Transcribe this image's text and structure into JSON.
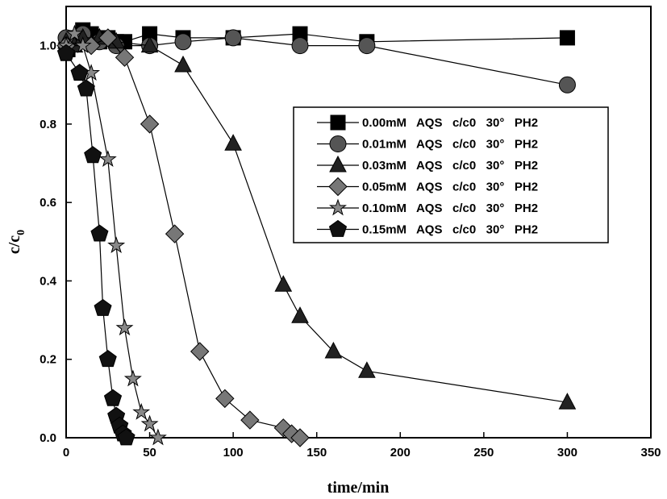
{
  "chart_data": {
    "type": "line",
    "xlabel": "time/min",
    "ylabel": "c/c",
    "ylabel_subscript": "0",
    "xlim": [
      0,
      350
    ],
    "ylim": [
      0,
      1.1
    ],
    "xticks": [
      "0",
      "50",
      "100",
      "150",
      "200",
      "250",
      "300",
      "350"
    ],
    "yticks": [
      "0.0",
      "0.2",
      "0.4",
      "0.6",
      "0.8",
      "1.0"
    ],
    "xtick_values": [
      0,
      50,
      100,
      150,
      200,
      250,
      300,
      350
    ],
    "ytick_values": [
      0,
      0.2,
      0.4,
      0.6,
      0.8,
      1.0
    ],
    "grid": false,
    "legend_position": "center-right",
    "series": [
      {
        "name": "0.00mM   AQS   c/c0   30°   PH2",
        "marker": "square",
        "x": [
          0,
          1,
          5,
          10,
          15,
          20,
          25,
          30,
          35,
          50,
          70,
          100,
          140,
          180,
          300
        ],
        "y": [
          1.0,
          0.99,
          1.02,
          1.04,
          1.03,
          1.01,
          1.02,
          1.01,
          1.01,
          1.03,
          1.02,
          1.02,
          1.03,
          1.01,
          1.02
        ]
      },
      {
        "name": "0.01mM   AQS   c/c0   30°   PH2",
        "marker": "circle",
        "x": [
          0,
          10,
          20,
          30,
          50,
          70,
          100,
          140,
          180,
          300
        ],
        "y": [
          1.02,
          1.03,
          1.01,
          1.0,
          1.0,
          1.01,
          1.02,
          1.0,
          1.0,
          0.9
        ]
      },
      {
        "name": "0.03mM   AQS   c/c0   30°   PH2",
        "marker": "triangle",
        "x": [
          0,
          5,
          10,
          20,
          30,
          50,
          70,
          100,
          130,
          140,
          160,
          180,
          300
        ],
        "y": [
          1.01,
          1.0,
          1.02,
          1.02,
          1.01,
          1.0,
          0.95,
          0.75,
          0.39,
          0.31,
          0.22,
          0.17,
          0.09
        ]
      },
      {
        "name": "0.05mM   AQS   c/c0   30°   PH2",
        "marker": "diamond",
        "x": [
          0,
          15,
          25,
          35,
          50,
          65,
          80,
          95,
          110,
          130,
          135,
          140
        ],
        "y": [
          1.0,
          1.0,
          1.02,
          0.97,
          0.8,
          0.52,
          0.22,
          0.1,
          0.045,
          0.025,
          0.01,
          0.0
        ]
      },
      {
        "name": "0.10mM   AQS   c/c0   30°   PH2",
        "marker": "star",
        "x": [
          0,
          5,
          10,
          15,
          25,
          30,
          35,
          40,
          45,
          50,
          55
        ],
        "y": [
          1.0,
          1.03,
          1.0,
          0.93,
          0.71,
          0.49,
          0.28,
          0.15,
          0.065,
          0.035,
          0.0
        ]
      },
      {
        "name": "0.15mM   AQS   c/c0   30°   PH2",
        "marker": "pentagon",
        "x": [
          0,
          8,
          12,
          16,
          20,
          22,
          25,
          28,
          30,
          32,
          34,
          36
        ],
        "y": [
          0.98,
          0.93,
          0.89,
          0.72,
          0.52,
          0.33,
          0.2,
          0.1,
          0.055,
          0.03,
          0.01,
          0.0
        ]
      }
    ]
  }
}
